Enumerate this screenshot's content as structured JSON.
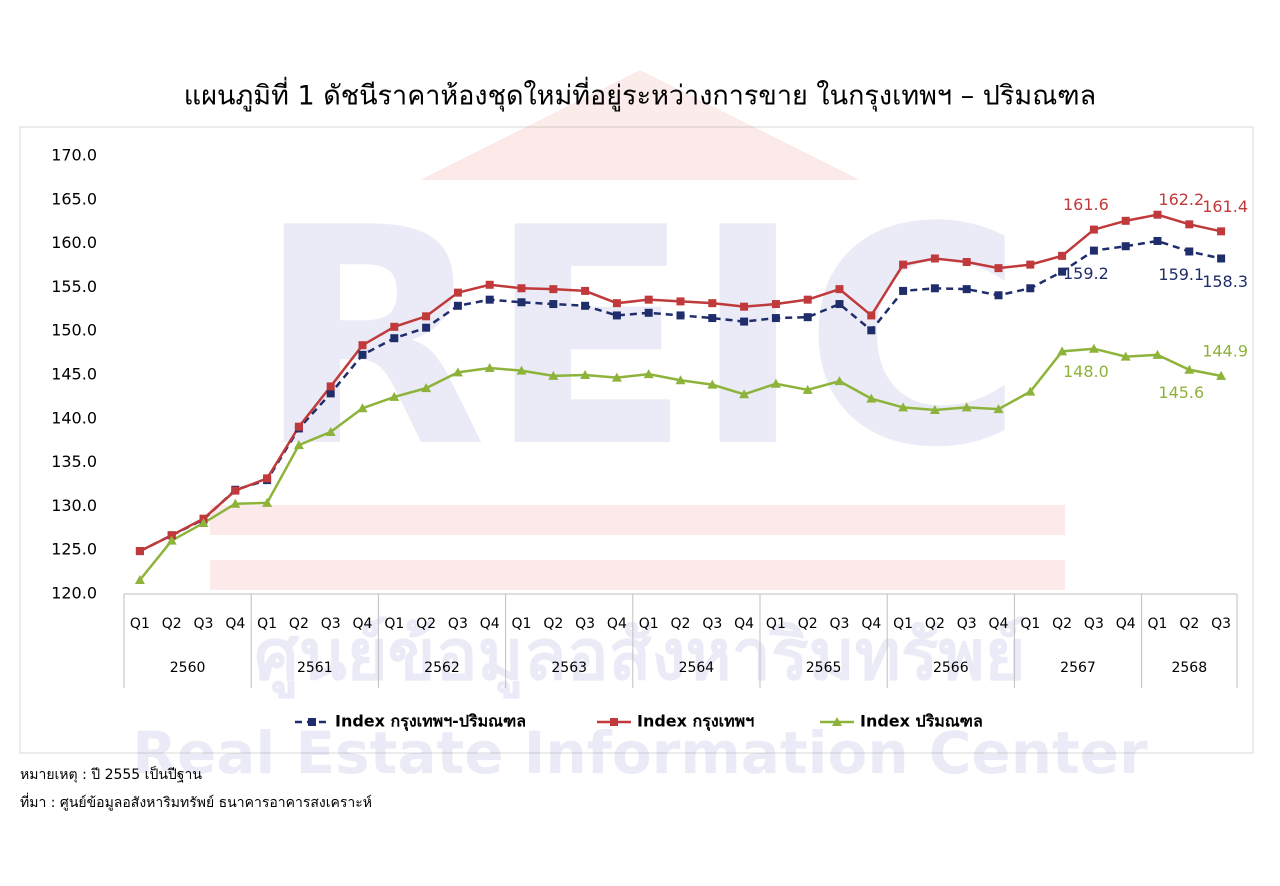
{
  "chart_data": {
    "type": "line",
    "title": "แผนภูมิที่ 1 ดัชนีราคาห้องชุดใหม่ที่อยู่ระหว่างการขาย ในกรุงเทพฯ – ปริมณฑล",
    "groups": [
      {
        "label": "2560",
        "categories": [
          "Q1",
          "Q2",
          "Q3",
          "Q4"
        ]
      },
      {
        "label": "2561",
        "categories": [
          "Q1",
          "Q2",
          "Q3",
          "Q4"
        ]
      },
      {
        "label": "2562",
        "categories": [
          "Q1",
          "Q2",
          "Q3",
          "Q4"
        ]
      },
      {
        "label": "2563",
        "categories": [
          "Q1",
          "Q2",
          "Q3",
          "Q4"
        ]
      },
      {
        "label": "2564",
        "categories": [
          "Q1",
          "Q2",
          "Q3",
          "Q4"
        ]
      },
      {
        "label": "2565",
        "categories": [
          "Q1",
          "Q2",
          "Q3",
          "Q4"
        ]
      },
      {
        "label": "2566",
        "categories": [
          "Q1",
          "Q2",
          "Q3",
          "Q4"
        ]
      },
      {
        "label": "2567",
        "categories": [
          "Q1",
          "Q2",
          "Q3",
          "Q4"
        ]
      },
      {
        "label": "2568",
        "categories": [
          "Q1",
          "Q2",
          "Q3"
        ]
      }
    ],
    "series": [
      {
        "name": "Index กรุงเทพฯ-ปริมณฑล",
        "color": "#1f2d6b",
        "dash": true,
        "marker": "square",
        "values": [
          124.9,
          126.7,
          128.5,
          131.9,
          133.0,
          138.9,
          142.9,
          147.3,
          149.2,
          150.4,
          152.9,
          153.6,
          153.3,
          153.1,
          152.9,
          151.8,
          152.1,
          151.8,
          151.5,
          151.1,
          151.5,
          151.6,
          153.1,
          150.1,
          154.6,
          154.9,
          154.8,
          154.1,
          154.9,
          156.8,
          159.2,
          159.7,
          160.3,
          159.1,
          158.3
        ],
        "value_labels": [
          null,
          null,
          null,
          null,
          null,
          null,
          null,
          null,
          null,
          null,
          null,
          null,
          null,
          null,
          null,
          null,
          null,
          null,
          null,
          null,
          null,
          null,
          null,
          null,
          null,
          null,
          null,
          null,
          null,
          null,
          "159.2",
          null,
          null,
          "159.1",
          "158.3"
        ]
      },
      {
        "name": "Index กรุงเทพฯ",
        "color": "#c0393b",
        "dash": false,
        "marker": "square",
        "values": [
          124.9,
          126.7,
          128.6,
          131.8,
          133.2,
          139.1,
          143.7,
          148.4,
          150.5,
          151.7,
          154.4,
          155.3,
          154.9,
          154.8,
          154.6,
          153.2,
          153.6,
          153.4,
          153.2,
          152.8,
          153.1,
          153.6,
          154.8,
          151.8,
          157.6,
          158.3,
          157.9,
          157.2,
          157.6,
          158.6,
          161.6,
          162.6,
          163.3,
          162.2,
          161.4
        ],
        "value_labels": [
          null,
          null,
          null,
          null,
          null,
          null,
          null,
          null,
          null,
          null,
          null,
          null,
          null,
          null,
          null,
          null,
          null,
          null,
          null,
          null,
          null,
          null,
          null,
          null,
          null,
          null,
          null,
          null,
          null,
          null,
          "161.6",
          null,
          null,
          "162.2",
          "161.4"
        ]
      },
      {
        "name": "Index ปริมณฑล",
        "color": "#8db33a",
        "dash": false,
        "marker": "triangle",
        "values": [
          121.6,
          126.1,
          128.1,
          130.3,
          130.4,
          137.0,
          138.5,
          141.2,
          142.5,
          143.5,
          145.3,
          145.8,
          145.5,
          144.9,
          145.0,
          144.7,
          145.1,
          144.4,
          143.9,
          142.8,
          144.0,
          143.3,
          144.3,
          142.3,
          141.3,
          141.0,
          141.3,
          141.1,
          143.1,
          147.7,
          148.0,
          147.1,
          147.3,
          145.6,
          144.9
        ],
        "value_labels": [
          null,
          null,
          null,
          null,
          null,
          null,
          null,
          null,
          null,
          null,
          null,
          null,
          null,
          null,
          null,
          null,
          null,
          null,
          null,
          null,
          null,
          null,
          null,
          null,
          null,
          null,
          null,
          null,
          null,
          null,
          "148.0",
          null,
          null,
          "145.6",
          "144.9"
        ]
      }
    ],
    "ylim": [
      120,
      170
    ],
    "yticks": [
      {
        "value": 120,
        "label": "120.0"
      },
      {
        "value": 125,
        "label": "125.0"
      },
      {
        "value": 130,
        "label": "130.0"
      },
      {
        "value": 135,
        "label": "135.0"
      },
      {
        "value": 140,
        "label": "140.0"
      },
      {
        "value": 145,
        "label": "145.0"
      },
      {
        "value": 150,
        "label": "150.0"
      },
      {
        "value": 155,
        "label": "155.0"
      },
      {
        "value": 160,
        "label": "160.0"
      },
      {
        "value": 165,
        "label": "165.0"
      },
      {
        "value": 170,
        "label": "170.0"
      }
    ],
    "grid": false,
    "legend": "bottom",
    "watermark": [
      "REIC",
      "ศูนย์ข้อมูลอสังหาริมทรัพย์",
      "Real Estate Information Center"
    ],
    "notes": [
      "หมายเหตุ : ปี 2555 เป็นปีฐาน",
      "ที่มา : ศูนย์ข้อมูลอสังหาริมทรัพย์ ธนาคารอาคารสงเคราะห์"
    ]
  }
}
